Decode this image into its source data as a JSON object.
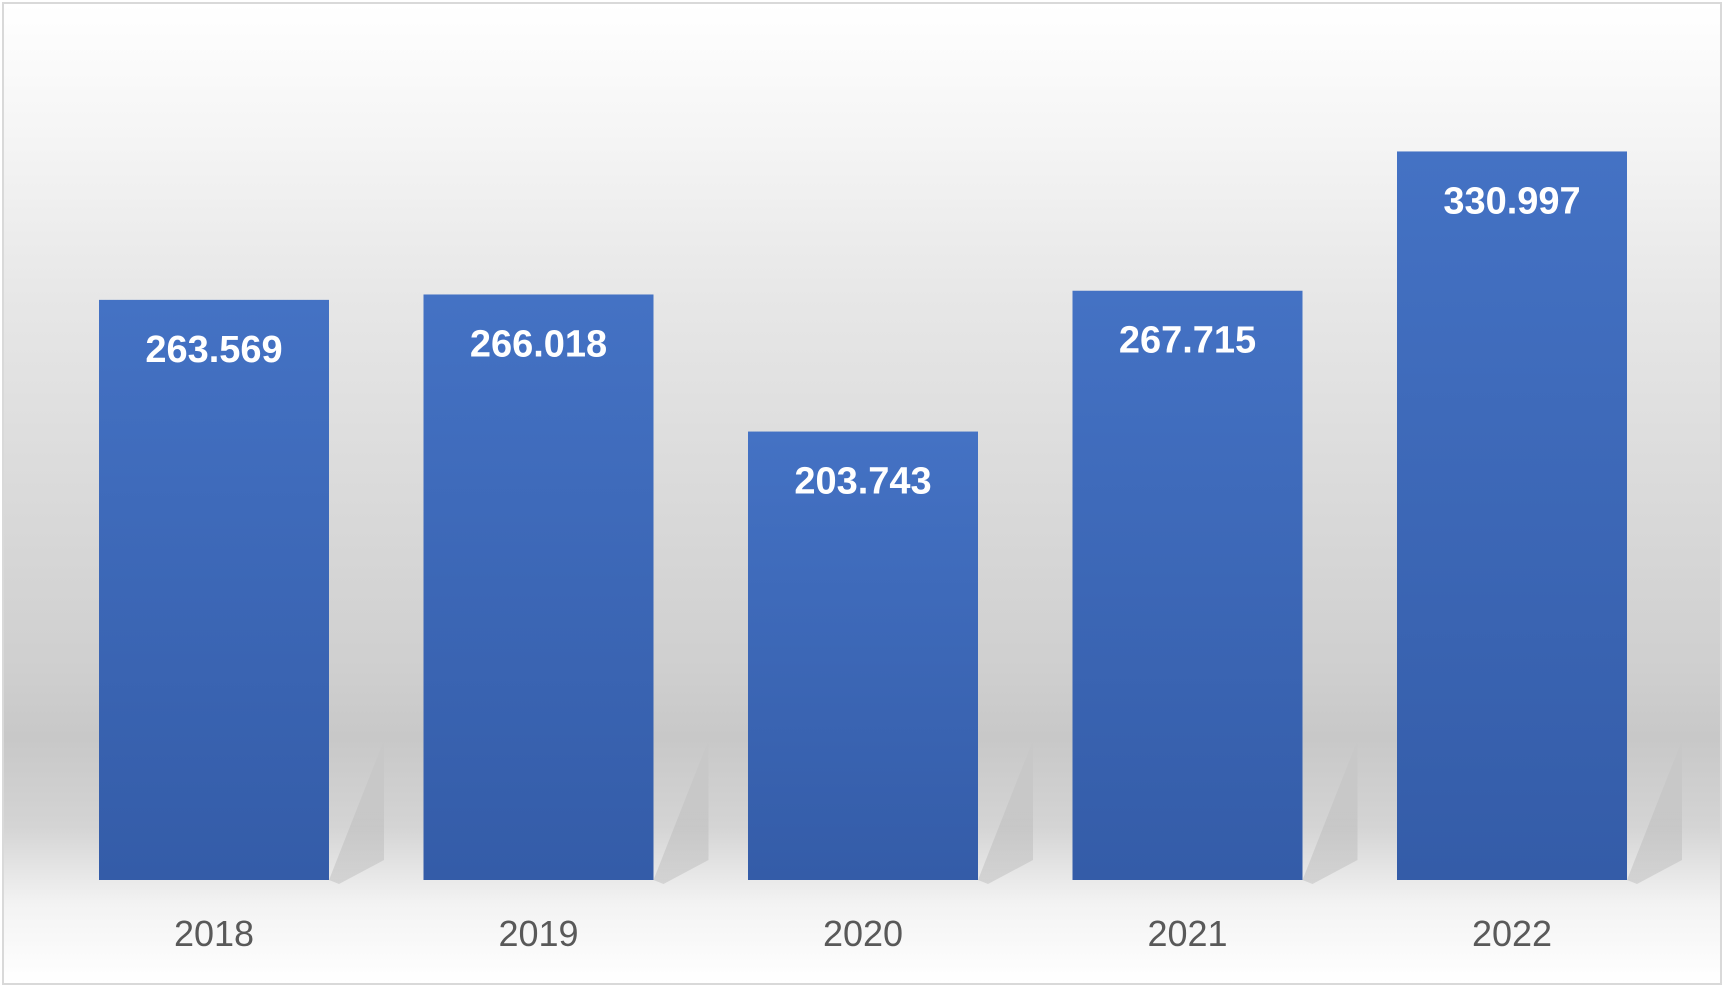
{
  "chart_data": {
    "type": "bar",
    "title": "",
    "xlabel": "",
    "ylabel": "",
    "categories": [
      "2018",
      "2019",
      "2020",
      "2021",
      "2022"
    ],
    "values": [
      263.569,
      266.018,
      203.743,
      267.715,
      330.997
    ],
    "value_labels": [
      "263.569",
      "266.018",
      "203.743",
      "267.715",
      "330.997"
    ],
    "ylim": [
      0,
      378
    ],
    "grid": false,
    "legend": "none",
    "colors": {
      "bar_top": "#4472C4",
      "bar_bottom": "#345CA8",
      "label": "#FFFFFF",
      "tick": "#595959"
    }
  }
}
